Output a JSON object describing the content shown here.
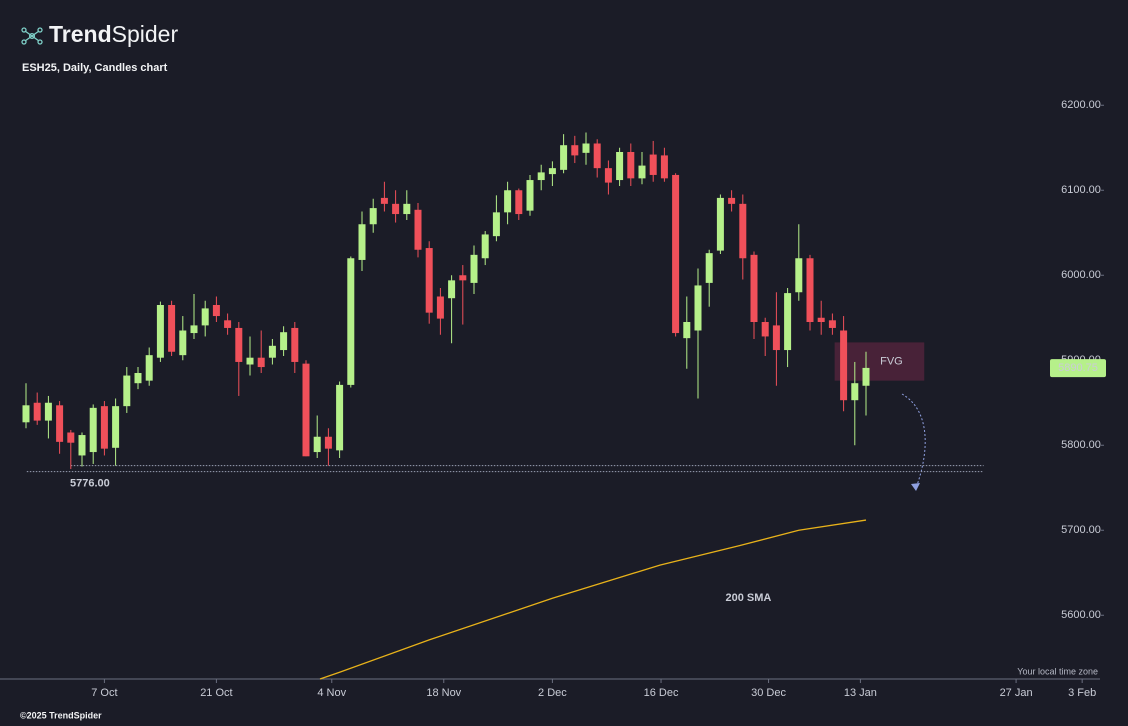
{
  "chart_data": {
    "type": "candlestick",
    "brand_bold": "Trend",
    "brand_light": "Spider",
    "title": "ESH25, Daily, Candles chart",
    "timezone_note": "Your local time zone",
    "copyright": "©2025 TrendSpider",
    "up_color": "#b6f08a",
    "down_color": "#f0505a",
    "x": [
      0,
      1,
      2,
      3,
      4,
      5,
      6,
      7,
      8,
      9,
      10,
      11,
      12,
      13,
      14,
      15,
      16,
      17,
      18,
      19,
      20,
      21,
      22,
      23,
      24,
      25,
      26,
      27,
      28,
      29,
      30,
      31,
      32,
      33,
      34,
      35,
      36,
      37,
      38,
      39,
      40,
      41,
      42,
      43,
      44,
      45,
      46,
      47,
      48,
      49,
      50,
      51,
      52,
      53,
      54,
      55,
      56,
      57,
      58,
      59,
      60,
      61,
      62,
      63,
      64,
      65,
      66,
      67,
      68,
      69,
      70,
      71,
      72,
      73,
      74,
      75
    ],
    "open": [
      5827,
      5850,
      5829,
      5847,
      5815,
      5788,
      5792,
      5846,
      5797,
      5846,
      5873,
      5876,
      5903,
      5965,
      5906,
      5932,
      5941,
      5965,
      5947,
      5938,
      5895,
      5903,
      5903,
      5912,
      5938,
      5896,
      5792,
      5810,
      5794,
      5871,
      6018,
      6060,
      6091,
      6084,
      6072,
      6077,
      6032,
      5975,
      5973,
      6000,
      5991,
      6020,
      6046,
      6074,
      6100,
      6076,
      6112,
      6119,
      6124,
      6153,
      6144,
      6155,
      6126,
      6112,
      6145,
      6114,
      6142,
      6141,
      6118,
      5926,
      5935,
      5991,
      6029,
      6091,
      6084,
      6024,
      5945,
      5941,
      5912,
      5980,
      6020,
      5950,
      5947,
      5935,
      5853,
      5870
    ],
    "high": [
      5873,
      5862,
      5858,
      5852,
      5818,
      5815,
      5848,
      5852,
      5855,
      5892,
      5892,
      5915,
      5969,
      5970,
      5952,
      5978,
      5970,
      5975,
      5955,
      5945,
      5928,
      5935,
      5925,
      5940,
      5945,
      5900,
      5835,
      5820,
      5875,
      6022,
      6075,
      6090,
      6110,
      6100,
      6100,
      6085,
      6040,
      5985,
      6000,
      6012,
      6035,
      6052,
      6094,
      6110,
      6102,
      6118,
      6130,
      6134,
      6166,
      6164,
      6168,
      6160,
      6135,
      6150,
      6155,
      6145,
      6158,
      6150,
      6120,
      5975,
      6008,
      6030,
      6095,
      6100,
      6095,
      6028,
      5950,
      5980,
      5985,
      6060,
      6024,
      5970,
      5955,
      5952,
      5898,
      5910
    ],
    "low": [
      5820,
      5824,
      5808,
      5790,
      5772,
      5775,
      5778,
      5788,
      5776,
      5838,
      5866,
      5870,
      5898,
      5905,
      5900,
      5925,
      5928,
      5945,
      5930,
      5858,
      5882,
      5885,
      5895,
      5905,
      5885,
      5787,
      5785,
      5776,
      5785,
      5868,
      6005,
      6050,
      6075,
      6062,
      6065,
      6021,
      5943,
      5930,
      5920,
      5942,
      5978,
      6012,
      6040,
      6060,
      6065,
      6070,
      6100,
      6105,
      6120,
      6132,
      6130,
      6115,
      6095,
      6105,
      6105,
      6107,
      6110,
      6110,
      5928,
      5890,
      5855,
      5963,
      6025,
      6075,
      5995,
      5925,
      5905,
      5870,
      5892,
      5970,
      5935,
      5930,
      5930,
      5840,
      5800,
      5835
    ],
    "close": [
      5847,
      5829,
      5850,
      5804,
      5803,
      5812,
      5844,
      5796,
      5846,
      5882,
      5885,
      5906,
      5965,
      5910,
      5935,
      5941,
      5961,
      5952,
      5938,
      5898,
      5903,
      5892,
      5917,
      5933,
      5898,
      5787,
      5810,
      5796,
      5871,
      6020,
      6060,
      6079,
      6084,
      6072,
      6084,
      6030,
      5956,
      5949,
      5994,
      5994,
      6024,
      6048,
      6074,
      6100,
      6072,
      6112,
      6121,
      6126,
      6153,
      6141,
      6155,
      6126,
      6109,
      6145,
      6114,
      6129,
      6118,
      6114,
      5932,
      5945,
      5988,
      6026,
      6091,
      6084,
      6020,
      5945,
      5928,
      5912,
      5979,
      6020,
      5945,
      5945,
      5938,
      5853,
      5873,
      5891
    ],
    "last_price": 5890.75,
    "xlim": [
      -2,
      96
    ],
    "ylim": [
      5525,
      6229
    ],
    "xticks": [
      {
        "value": 7,
        "label": "7 Oct"
      },
      {
        "value": 17,
        "label": "21 Oct"
      },
      {
        "value": 27.3,
        "label": "4 Nov"
      },
      {
        "value": 37.3,
        "label": "18 Nov"
      },
      {
        "value": 47,
        "label": "2 Dec"
      },
      {
        "value": 56.7,
        "label": "16 Dec"
      },
      {
        "value": 66.3,
        "label": "30 Dec"
      },
      {
        "value": 74.5,
        "label": "13 Jan"
      },
      {
        "value": 88.4,
        "label": "27 Jan"
      },
      {
        "value": 94.3,
        "label": "3 Feb"
      }
    ],
    "yticks": [
      {
        "value": 5600,
        "label": "5600.00"
      },
      {
        "value": 5700,
        "label": "5700.00"
      },
      {
        "value": 5800,
        "label": "5800.00"
      },
      {
        "value": 5900,
        "label": "5900.00"
      },
      {
        "value": 6000,
        "label": "6000.00"
      },
      {
        "value": 6100,
        "label": "6100.00"
      },
      {
        "value": 6200,
        "label": "6200.00"
      }
    ],
    "support": {
      "value": 5776,
      "label": "5776.00",
      "x_start": 4,
      "x_end": 85.5
    },
    "fvg": {
      "label": "FVG",
      "top": 5921,
      "bottom": 5876,
      "x_start": 72.2,
      "x_end": 80.2
    },
    "sma": {
      "name": "200 SMA",
      "color": "#e8b21a",
      "x": [
        26.25,
        28,
        36,
        47,
        56.6,
        63.75,
        69,
        75
      ],
      "values": [
        5525,
        5533,
        5571,
        5620,
        5659,
        5682,
        5700,
        5712
      ],
      "label_x": 64.5,
      "label_y": 5620
    }
  }
}
